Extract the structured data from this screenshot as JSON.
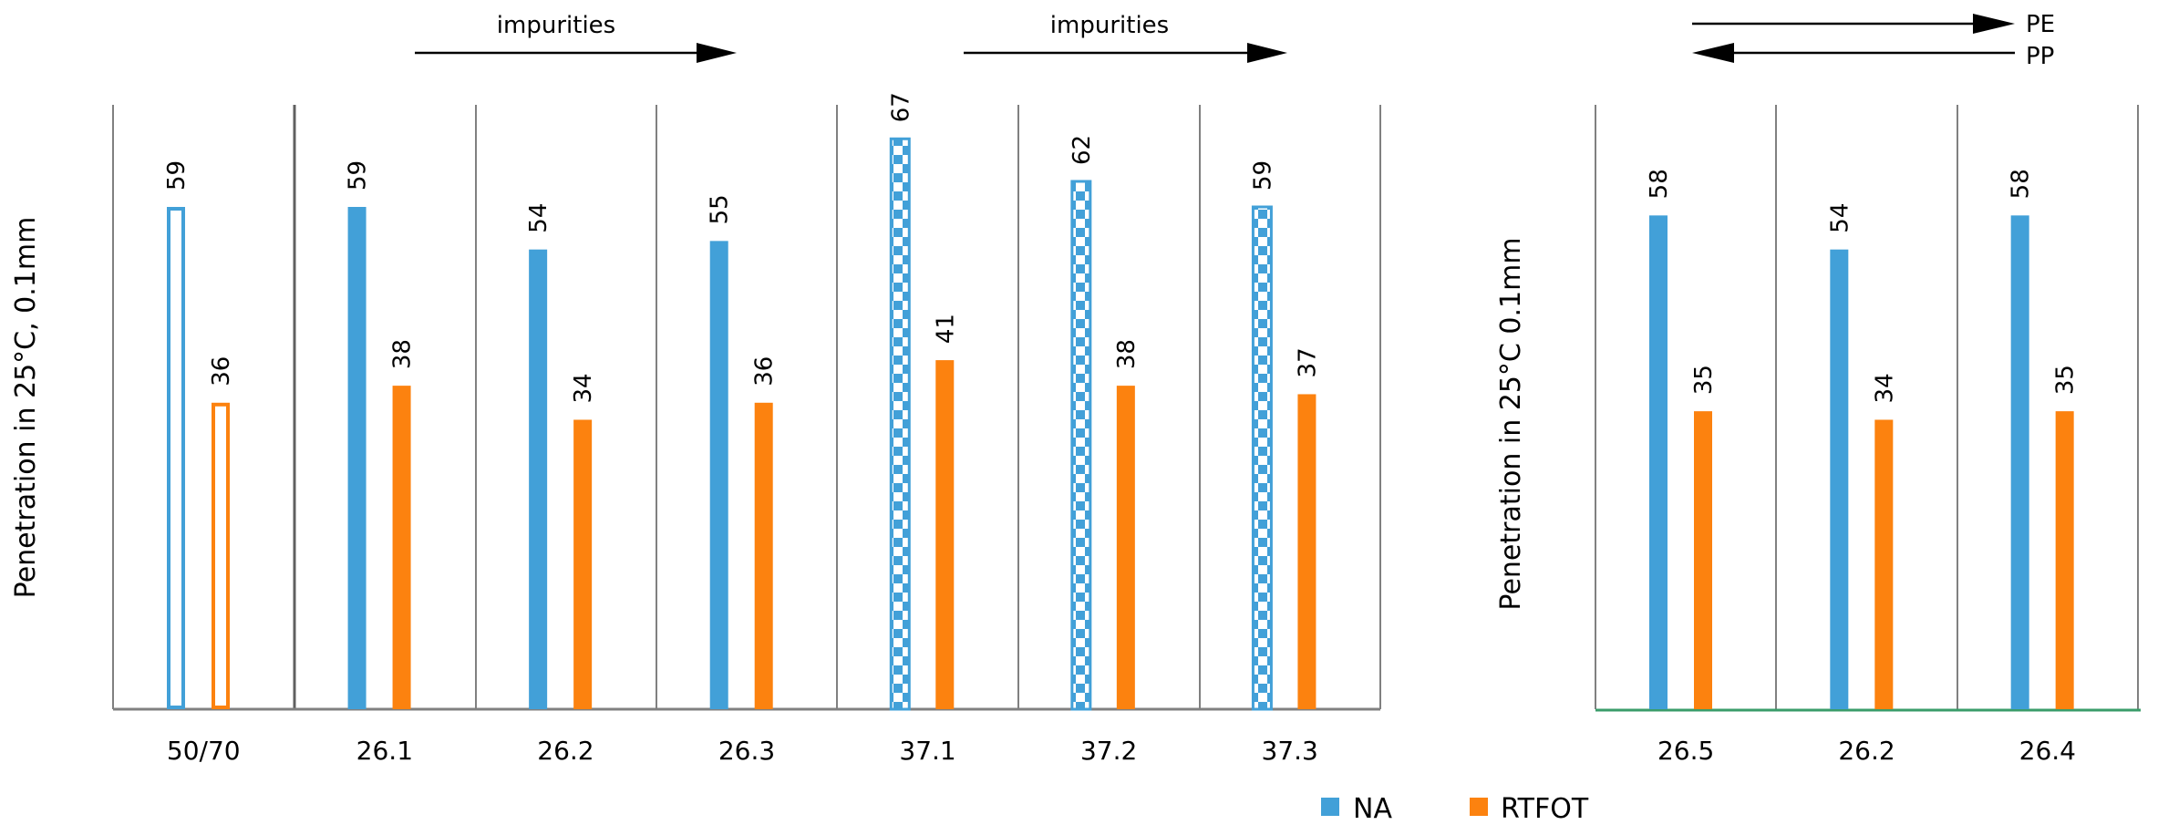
{
  "chart_data": [
    {
      "type": "bar",
      "ylabel": "Penetration in 25°C, 0.1mm",
      "ylim": [
        0,
        80
      ],
      "grid": false,
      "categories": [
        "50/70",
        "26.1",
        "26.2",
        "26.3",
        "37.1",
        "37.2",
        "37.3"
      ],
      "category_styles": [
        "outline",
        "solid",
        "solid",
        "solid",
        "checkered",
        "checkered",
        "checkered"
      ],
      "series": [
        {
          "name": "NA",
          "values": [
            59,
            59,
            54,
            55,
            67,
            62,
            59
          ]
        },
        {
          "name": "RTFOT",
          "values": [
            36,
            38,
            34,
            36,
            41,
            38,
            37
          ]
        }
      ],
      "annotations": [
        {
          "text": "impurities",
          "arrow": "right",
          "over": [
            "26.2",
            "26.3"
          ]
        },
        {
          "text": "impurities",
          "arrow": "right",
          "over": [
            "37.2",
            "37.3"
          ]
        }
      ]
    },
    {
      "type": "bar",
      "ylabel": "Penetration in 25°C 0.1mm",
      "ylim": [
        0,
        80
      ],
      "grid": false,
      "categories": [
        "26.5",
        "26.2",
        "26.4"
      ],
      "series": [
        {
          "name": "NA",
          "values": [
            58,
            54,
            58
          ]
        },
        {
          "name": "RTFOT",
          "values": [
            35,
            34,
            35
          ]
        }
      ],
      "annotations": [
        {
          "text": "PE",
          "arrow": "right"
        },
        {
          "text": "PP",
          "arrow": "left"
        }
      ]
    }
  ],
  "legend": {
    "position": "bottom",
    "items": [
      {
        "label": "NA",
        "color": "#42a0d8"
      },
      {
        "label": "RTFOT",
        "color": "#fc820f"
      }
    ]
  },
  "colors": {
    "na": "#42a0d8",
    "rtfot": "#fc820f",
    "axis": "#808080",
    "axis_right": "#3a9c6a"
  }
}
